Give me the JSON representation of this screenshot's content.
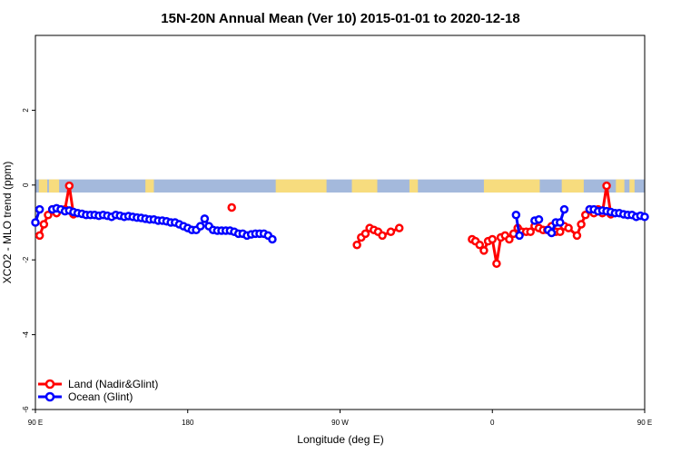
{
  "chart_data": {
    "type": "line",
    "title": "15N-20N Annual Mean (Ver 10)   2015-01-01 to 2020-12-18",
    "xlabel": "Longitude (deg E)",
    "ylabel": "XCO2 - MLO trend (ppm)",
    "xlim": [
      90,
      450
    ],
    "ylim": [
      -6,
      4
    ],
    "x_ticks": [
      {
        "value": 90,
        "label": "90 E"
      },
      {
        "value": 180,
        "label": "180"
      },
      {
        "value": 270,
        "label": "90 W"
      },
      {
        "value": 360,
        "label": "0"
      },
      {
        "value": 450,
        "label": "90 E"
      },
      {
        "value": 540,
        "label": "180"
      }
    ],
    "y_ticks": [
      {
        "value": 2,
        "label": "2"
      },
      {
        "value": 0,
        "label": "0"
      },
      {
        "value": -2,
        "label": "-2"
      },
      {
        "value": -4,
        "label": "-4"
      },
      {
        "value": -6,
        "label": "-6"
      }
    ],
    "land_sea_band": {
      "ocean_color": "#a4b9dc",
      "land_color": "#f7dc7e"
    },
    "legend_position": "bottom-left",
    "series": [
      {
        "name": "Land (Nadir&Glint)",
        "color": "#ff0000",
        "segments": [
          [
            [
              92.5,
              -1.35
            ],
            [
              95,
              -1.05
            ],
            [
              97.5,
              -0.8
            ],
            [
              100,
              -0.65
            ],
            [
              102.5,
              -0.75
            ],
            [
              107.5,
              -0.65
            ],
            [
              110,
              -0.02
            ],
            [
              112.5,
              -0.78
            ]
          ],
          [
            [
              206,
              -0.6
            ]
          ],
          [
            [
              280,
              -1.6
            ],
            [
              282.5,
              -1.4
            ],
            [
              285,
              -1.3
            ],
            [
              287.5,
              -1.15
            ],
            [
              290,
              -1.2
            ],
            [
              292.5,
              -1.25
            ],
            [
              295,
              -1.35
            ],
            [
              300,
              -1.25
            ],
            [
              305,
              -1.15
            ]
          ],
          [
            [
              348,
              -1.45
            ],
            [
              350,
              -1.5
            ],
            [
              352.5,
              -1.6
            ],
            [
              355,
              -1.75
            ],
            [
              357.5,
              -1.5
            ],
            [
              360,
              -1.45
            ],
            [
              362.5,
              -2.1
            ],
            [
              365,
              -1.4
            ],
            [
              367.5,
              -1.35
            ],
            [
              370,
              -1.45
            ],
            [
              372.5,
              -1.3
            ],
            [
              375,
              -1.15
            ]
          ],
          [
            [
              377.5,
              -1.25
            ],
            [
              380,
              -1.25
            ],
            [
              382.5,
              -1.25
            ],
            [
              385,
              -1.1
            ],
            [
              387.5,
              -1.15
            ],
            [
              390,
              -1.2
            ],
            [
              392.5,
              -1.2
            ],
            [
              395,
              -1.1
            ],
            [
              397.5,
              -1.25
            ],
            [
              400,
              -1.25
            ],
            [
              402.5,
              -1.1
            ],
            [
              405,
              -1.15
            ],
            [
              410,
              -1.35
            ],
            [
              412.5,
              -1.05
            ],
            [
              415,
              -0.8
            ],
            [
              417.5,
              -0.65
            ],
            [
              420,
              -0.75
            ],
            [
              422.5,
              -0.65
            ],
            [
              425,
              -0.75
            ],
            [
              427.5,
              -0.02
            ],
            [
              430,
              -0.78
            ]
          ]
        ]
      },
      {
        "name": "Ocean (Glint)",
        "color": "#0000ff",
        "segments": [
          [
            [
              90,
              -1.0
            ],
            [
              92.5,
              -0.65
            ]
          ],
          [
            [
              100,
              -0.65
            ],
            [
              102.5,
              -0.62
            ],
            [
              105,
              -0.65
            ],
            [
              107.5,
              -0.7
            ],
            [
              110,
              -0.68
            ],
            [
              112.5,
              -0.72
            ],
            [
              115,
              -0.75
            ],
            [
              117.5,
              -0.77
            ],
            [
              120,
              -0.8
            ],
            [
              122.5,
              -0.8
            ],
            [
              125,
              -0.8
            ],
            [
              127.5,
              -0.82
            ],
            [
              130,
              -0.8
            ],
            [
              132.5,
              -0.82
            ],
            [
              135,
              -0.85
            ],
            [
              137.5,
              -0.8
            ],
            [
              140,
              -0.82
            ],
            [
              142.5,
              -0.85
            ],
            [
              145,
              -0.83
            ],
            [
              147.5,
              -0.85
            ],
            [
              150,
              -0.87
            ],
            [
              152.5,
              -0.88
            ],
            [
              155,
              -0.9
            ],
            [
              157.5,
              -0.92
            ],
            [
              160,
              -0.92
            ],
            [
              162.5,
              -0.95
            ],
            [
              165,
              -0.95
            ],
            [
              167.5,
              -0.97
            ],
            [
              170,
              -1.0
            ],
            [
              172.5,
              -1.0
            ],
            [
              175,
              -1.05
            ],
            [
              177.5,
              -1.1
            ],
            [
              180,
              -1.15
            ],
            [
              182.5,
              -1.2
            ],
            [
              185,
              -1.2
            ],
            [
              187.5,
              -1.1
            ],
            [
              190,
              -0.9
            ],
            [
              192.5,
              -1.1
            ],
            [
              195,
              -1.2
            ],
            [
              197.5,
              -1.22
            ],
            [
              200,
              -1.22
            ],
            [
              202.5,
              -1.22
            ],
            [
              205,
              -1.22
            ],
            [
              207.5,
              -1.25
            ],
            [
              210,
              -1.3
            ],
            [
              212.5,
              -1.3
            ],
            [
              215,
              -1.35
            ],
            [
              217.5,
              -1.32
            ],
            [
              220,
              -1.3
            ],
            [
              222.5,
              -1.3
            ],
            [
              225,
              -1.3
            ],
            [
              227.5,
              -1.35
            ],
            [
              230,
              -1.45
            ]
          ]
        ]
      },
      {
        "name": "Ocean (Glint)",
        "color": "#0000ff",
        "segments": [
          [
            [
              374,
              -0.8
            ],
            [
              376,
              -1.35
            ]
          ],
          [
            [
              385,
              -0.95
            ],
            [
              387.5,
              -0.92
            ]
          ],
          [
            [
              393,
              -1.2
            ],
            [
              395,
              -1.28
            ],
            [
              397.5,
              -1.0
            ],
            [
              400,
              -1.0
            ],
            [
              402.5,
              -0.65
            ]
          ],
          [
            [
              417.5,
              -0.65
            ],
            [
              420,
              -0.65
            ],
            [
              422.5,
              -0.7
            ],
            [
              425,
              -0.68
            ],
            [
              427.5,
              -0.7
            ],
            [
              430,
              -0.72
            ],
            [
              432.5,
              -0.75
            ],
            [
              435,
              -0.75
            ],
            [
              437.5,
              -0.78
            ],
            [
              440,
              -0.8
            ],
            [
              442.5,
              -0.8
            ],
            [
              445,
              -0.85
            ],
            [
              447.5,
              -0.82
            ],
            [
              450,
              -0.85
            ]
          ]
        ]
      }
    ]
  }
}
